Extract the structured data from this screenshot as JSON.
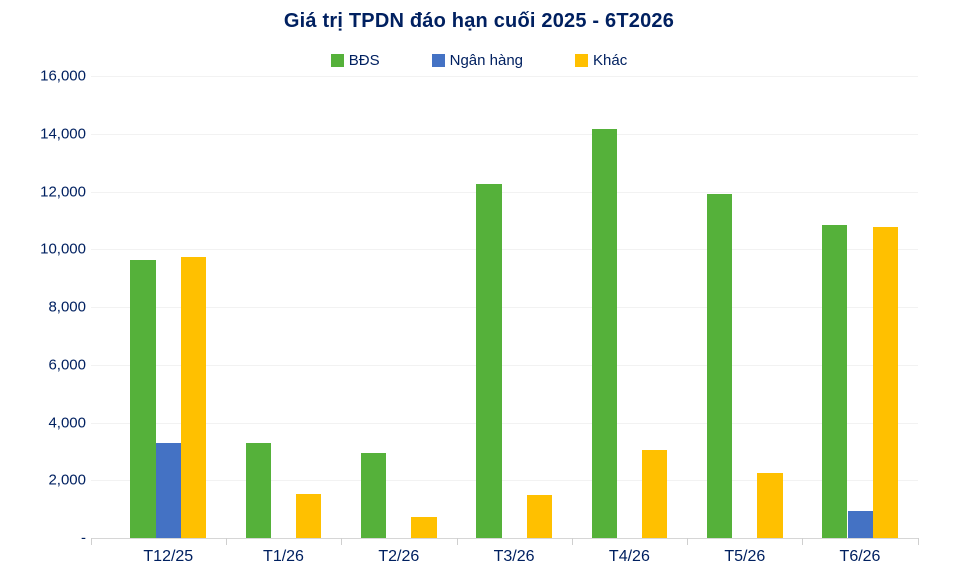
{
  "chart_data": {
    "type": "bar",
    "title": "Giá trị TPDN đáo hạn cuối 2025 - 6T2026",
    "categories": [
      "T12/25",
      "T1/26",
      "T2/26",
      "T3/26",
      "T4/26",
      "T5/26",
      "T6/26"
    ],
    "series": [
      {
        "name": "BĐS",
        "color": "#55B13A",
        "values": [
          9650,
          3280,
          2930,
          12260,
          14190,
          11910,
          10850
        ]
      },
      {
        "name": "Ngân hàng",
        "color": "#4472C4",
        "values": [
          3280,
          0,
          0,
          0,
          0,
          0,
          950
        ]
      },
      {
        "name": "Khác",
        "color": "#FFC000",
        "values": [
          9750,
          1540,
          740,
          1490,
          3050,
          2250,
          10780
        ]
      }
    ],
    "ylim": [
      0,
      16000
    ],
    "ytick_step": 2000,
    "ytick_labels": [
      "-",
      "2,000",
      "4,000",
      "6,000",
      "8,000",
      "10,000",
      "12,000",
      "14,000",
      "16,000"
    ],
    "grid": "horizontal",
    "legend_position": "top",
    "text_color": "#002060",
    "gridline_color": "#f2f2f2",
    "axis_color": "#d6d6d6"
  }
}
